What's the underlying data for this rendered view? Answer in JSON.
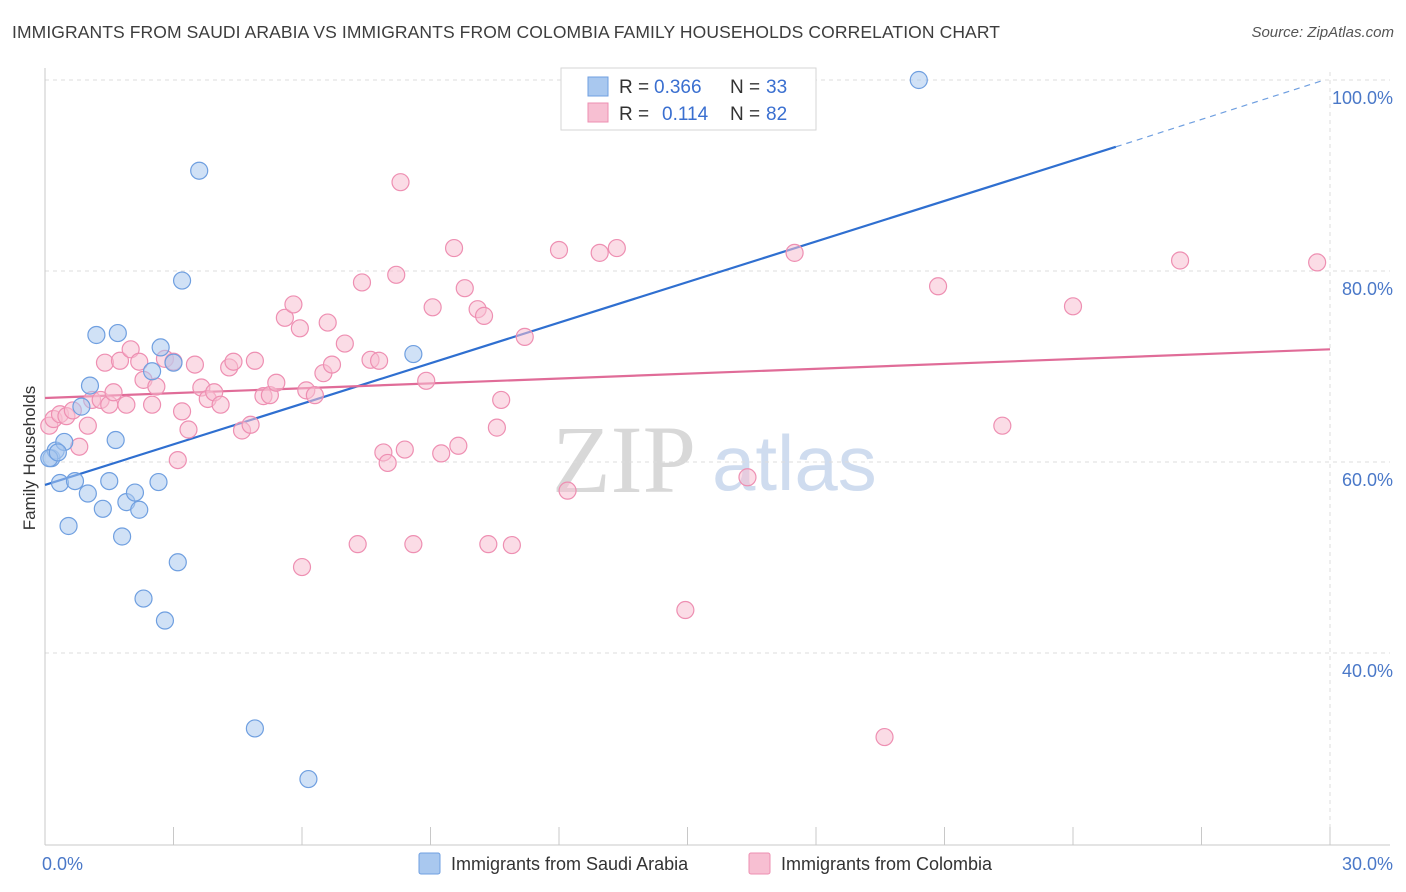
{
  "title": "IMMIGRANTS FROM SAUDI ARABIA VS IMMIGRANTS FROM COLOMBIA FAMILY HOUSEHOLDS CORRELATION CHART",
  "source": "Source: ZipAtlas.com",
  "watermark": {
    "zip": "ZIP",
    "atlas": "atlas"
  },
  "colors": {
    "blue_fill": "#a9c8ef",
    "blue_stroke": "#6f9fe0",
    "blue_line": "#2f6fd0",
    "pink_fill": "#f7bfd2",
    "pink_stroke": "#ee8fb2",
    "pink_line": "#e06c98",
    "tick_text": "#4a78c8",
    "grid": "#dddddd"
  },
  "legend": {
    "rows": [
      {
        "r_label": "R =",
        "r_value": "0.366",
        "n_label": "N =",
        "n_value": "33"
      },
      {
        "r_label": "R =",
        "r_value": "0.114",
        "n_label": "N =",
        "n_value": "82"
      }
    ]
  },
  "chart_data": {
    "type": "scatter",
    "title": "IMMIGRANTS FROM SAUDI ARABIA VS IMMIGRANTS FROM COLOMBIA FAMILY HOUSEHOLDS CORRELATION CHART",
    "xlabel": "",
    "ylabel": "Family Households",
    "xlim": [
      0,
      30
    ],
    "ylim": [
      20,
      101
    ],
    "x_tick_labels": [
      {
        "value": 0,
        "label": "0.0%"
      },
      {
        "value": 30,
        "label": "30.0%"
      }
    ],
    "y_tick_labels": [
      {
        "value": 100,
        "label": "100.0%"
      },
      {
        "value": 80,
        "label": "80.0%"
      },
      {
        "value": 60,
        "label": "60.0%"
      },
      {
        "value": 40,
        "label": "40.0%"
      }
    ],
    "series": [
      {
        "name": "Immigrants from Saudi Arabia",
        "r": 0.366,
        "n": 33,
        "trend": {
          "x0": 0,
          "y0": 57.6,
          "x1": 25.0,
          "y1": 93.0,
          "dash_to_x": 29.8,
          "dash_to_y": 99.9
        },
        "points": [
          [
            0.15,
            60.4
          ],
          [
            0.25,
            61.2
          ],
          [
            0.35,
            57.8
          ],
          [
            0.45,
            62.1
          ],
          [
            0.55,
            53.3
          ],
          [
            0.7,
            58.0
          ],
          [
            0.85,
            65.8
          ],
          [
            1.05,
            68.0
          ],
          [
            1.2,
            73.3
          ],
          [
            1.35,
            55.1
          ],
          [
            1.0,
            56.7
          ],
          [
            1.5,
            58.0
          ],
          [
            1.65,
            62.3
          ],
          [
            1.7,
            73.5
          ],
          [
            1.8,
            52.2
          ],
          [
            1.9,
            55.8
          ],
          [
            2.1,
            56.8
          ],
          [
            2.2,
            55.0
          ],
          [
            2.3,
            45.7
          ],
          [
            2.5,
            69.5
          ],
          [
            2.65,
            57.9
          ],
          [
            2.7,
            72.0
          ],
          [
            2.8,
            43.4
          ],
          [
            3.0,
            70.4
          ],
          [
            3.1,
            49.5
          ],
          [
            3.2,
            79.0
          ],
          [
            3.6,
            90.5
          ],
          [
            4.9,
            32.1
          ],
          [
            6.15,
            26.8
          ],
          [
            8.6,
            71.3
          ],
          [
            20.4,
            100.0
          ],
          [
            0.1,
            60.4
          ],
          [
            0.3,
            61.0
          ]
        ]
      },
      {
        "name": "Immigrants from Colombia",
        "r": 0.114,
        "n": 82,
        "trend": {
          "x0": 0,
          "y0": 66.7,
          "x1": 30,
          "y1": 71.8
        },
        "points": [
          [
            0.1,
            63.8
          ],
          [
            0.2,
            64.5
          ],
          [
            0.35,
            65.0
          ],
          [
            0.5,
            64.8
          ],
          [
            0.65,
            65.4
          ],
          [
            0.8,
            61.6
          ],
          [
            1.0,
            63.8
          ],
          [
            1.1,
            66.5
          ],
          [
            1.3,
            66.5
          ],
          [
            1.4,
            70.4
          ],
          [
            1.5,
            66.0
          ],
          [
            1.6,
            67.3
          ],
          [
            1.75,
            70.6
          ],
          [
            1.9,
            66.0
          ],
          [
            2.0,
            71.8
          ],
          [
            2.2,
            70.5
          ],
          [
            2.3,
            68.6
          ],
          [
            2.5,
            66.0
          ],
          [
            2.6,
            67.9
          ],
          [
            2.8,
            70.8
          ],
          [
            3.0,
            70.5
          ],
          [
            3.1,
            60.2
          ],
          [
            3.2,
            65.3
          ],
          [
            3.35,
            63.4
          ],
          [
            3.5,
            70.2
          ],
          [
            3.65,
            67.8
          ],
          [
            3.8,
            66.6
          ],
          [
            3.95,
            67.3
          ],
          [
            4.1,
            66.0
          ],
          [
            4.3,
            69.9
          ],
          [
            4.4,
            70.5
          ],
          [
            4.6,
            63.3
          ],
          [
            4.8,
            63.9
          ],
          [
            4.9,
            70.6
          ],
          [
            5.1,
            66.9
          ],
          [
            5.25,
            67.0
          ],
          [
            5.4,
            68.3
          ],
          [
            5.6,
            75.1
          ],
          [
            5.8,
            76.5
          ],
          [
            5.95,
            74.0
          ],
          [
            6.1,
            67.5
          ],
          [
            6.3,
            67.0
          ],
          [
            6.5,
            69.3
          ],
          [
            6.6,
            74.6
          ],
          [
            6.7,
            70.2
          ],
          [
            7.0,
            72.4
          ],
          [
            7.3,
            51.4
          ],
          [
            7.4,
            78.8
          ],
          [
            7.6,
            70.7
          ],
          [
            7.8,
            70.6
          ],
          [
            7.9,
            61.0
          ],
          [
            8.0,
            59.9
          ],
          [
            8.2,
            79.6
          ],
          [
            8.3,
            89.3
          ],
          [
            8.4,
            61.3
          ],
          [
            8.6,
            51.4
          ],
          [
            8.9,
            68.5
          ],
          [
            9.05,
            76.2
          ],
          [
            9.25,
            60.9
          ],
          [
            9.55,
            82.4
          ],
          [
            9.65,
            61.7
          ],
          [
            9.8,
            78.2
          ],
          [
            10.1,
            76.0
          ],
          [
            10.25,
            75.3
          ],
          [
            10.35,
            51.4
          ],
          [
            10.55,
            63.6
          ],
          [
            10.65,
            66.5
          ],
          [
            10.9,
            51.3
          ],
          [
            11.2,
            73.1
          ],
          [
            12.0,
            82.2
          ],
          [
            12.2,
            57.0
          ],
          [
            12.95,
            81.9
          ],
          [
            13.35,
            82.4
          ],
          [
            6.0,
            49.0
          ],
          [
            14.95,
            44.5
          ],
          [
            16.4,
            58.4
          ],
          [
            17.5,
            81.9
          ],
          [
            19.6,
            31.2
          ],
          [
            20.85,
            78.4
          ],
          [
            22.35,
            63.8
          ],
          [
            24.0,
            76.3
          ],
          [
            26.5,
            81.1
          ],
          [
            29.7,
            80.9
          ]
        ]
      }
    ]
  },
  "bottom_legend": [
    {
      "label": "Immigrants from Saudi Arabia"
    },
    {
      "label": "Immigrants from Colombia"
    }
  ]
}
